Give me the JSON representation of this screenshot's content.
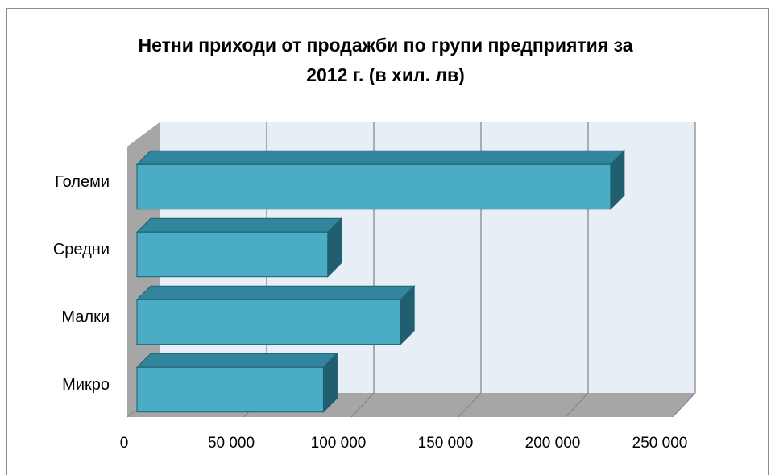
{
  "chart_data": {
    "type": "bar",
    "orientation": "horizontal",
    "style": "3d",
    "title_lines": [
      "Нетни приходи от продажби по групи предприятия за",
      "2012 г. (в хил. лв)"
    ],
    "categories": [
      "Големи",
      "Средни",
      "Малки",
      "Микро"
    ],
    "values": [
      221000,
      89000,
      123000,
      87000
    ],
    "xlim": [
      0,
      250000
    ],
    "x_ticks": [
      0,
      50000,
      100000,
      150000,
      200000,
      250000
    ],
    "x_tick_labels": [
      "0",
      "50 000",
      "100 000",
      "150 000",
      "200 000",
      "250 000"
    ],
    "grid": true,
    "legend": "none",
    "colors": {
      "bar_front": "#4bacc6",
      "bar_top": "#31859c",
      "bar_side": "#215f70",
      "bar_edge": "#1f5f70",
      "wall": "#e8eef6",
      "side_wall": "#a6a6a6",
      "floor": "#a6a6a6",
      "grid": "#808080"
    }
  }
}
